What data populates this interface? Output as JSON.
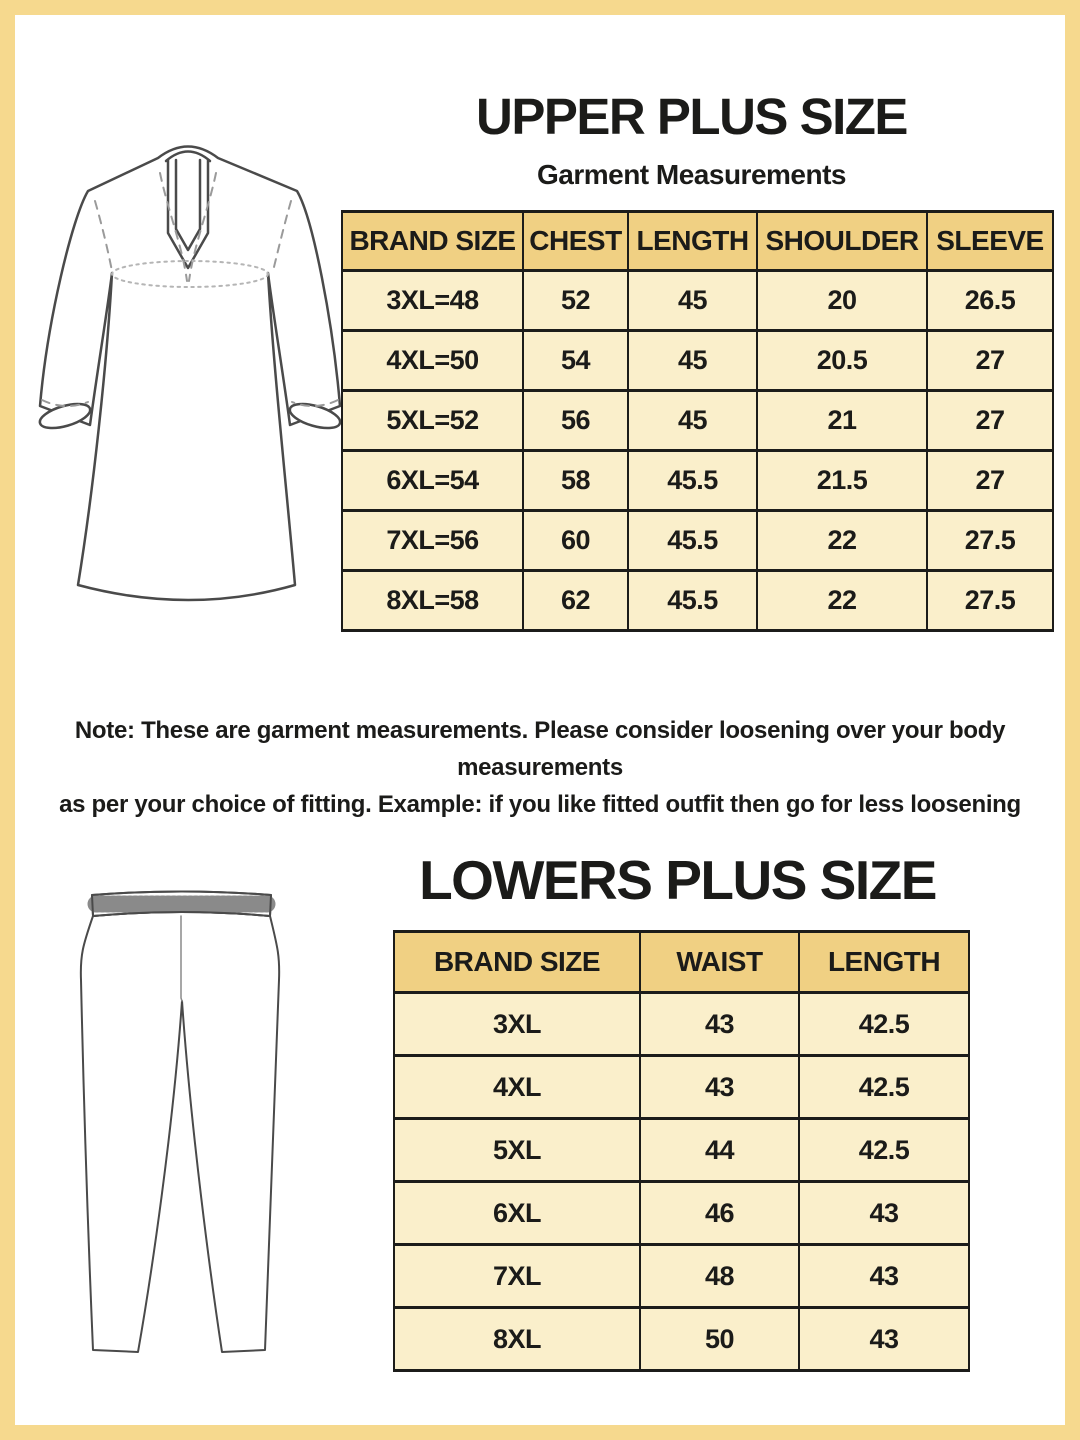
{
  "page": {
    "frame_color": "#f6d98e",
    "background": "#ffffff",
    "text_color": "#1b1b19",
    "table_header_bg": "#f0d083",
    "table_row_bg": "#faefcb",
    "table_border_color": "#1c1c1a"
  },
  "upper_section": {
    "title": "UPPER PLUS SIZE",
    "subtitle": "Garment Measurements",
    "illustration": "kurta-line-drawing",
    "table": {
      "columns": [
        "BRAND SIZE",
        "CHEST",
        "LENGTH",
        "SHOULDER",
        "SLEEVE"
      ],
      "rows": [
        [
          "3XL=48",
          "52",
          "45",
          "20",
          "26.5"
        ],
        [
          "4XL=50",
          "54",
          "45",
          "20.5",
          "27"
        ],
        [
          "5XL=52",
          "56",
          "45",
          "21",
          "27"
        ],
        [
          "6XL=54",
          "58",
          "45.5",
          "21.5",
          "27"
        ],
        [
          "7XL=56",
          "60",
          "45.5",
          "22",
          "27.5"
        ],
        [
          "8XL=58",
          "62",
          "45.5",
          "22",
          "27.5"
        ]
      ]
    }
  },
  "note": {
    "line1": "Note: These are garment measurements. Please consider loosening over your body measurements",
    "line2": "as per your choice of fitting. Example: if you like fitted outfit then go for less loosening"
  },
  "lower_section": {
    "title": "LOWERS PLUS SIZE",
    "illustration": "leggings-line-drawing",
    "table": {
      "columns": [
        "BRAND SIZE",
        "WAIST",
        "LENGTH"
      ],
      "rows": [
        [
          "3XL",
          "43",
          "42.5"
        ],
        [
          "4XL",
          "43",
          "42.5"
        ],
        [
          "5XL",
          "44",
          "42.5"
        ],
        [
          "6XL",
          "46",
          "43"
        ],
        [
          "7XL",
          "48",
          "43"
        ],
        [
          "8XL",
          "50",
          "43"
        ]
      ]
    }
  }
}
